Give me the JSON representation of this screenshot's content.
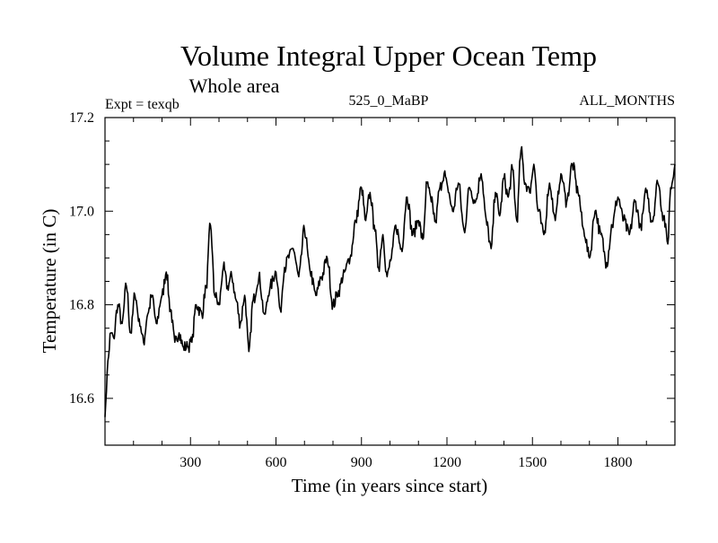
{
  "chart_data": {
    "type": "line",
    "title": "Volume Integral Upper Ocean Temp",
    "subtitle": "Whole area",
    "annotations": {
      "left": "Expt = texqb",
      "center": "525_0_MaBP",
      "right": "ALL_MONTHS"
    },
    "xlabel": "Time (in years since start)",
    "ylabel": "Temperature (in C)",
    "xlim": [
      0,
      2000
    ],
    "ylim": [
      16.5,
      17.2
    ],
    "x_ticks": [
      300,
      600,
      900,
      1200,
      1500,
      1800
    ],
    "x_tick_labels": [
      "300",
      "600",
      "900",
      "1200",
      "1500",
      "1800"
    ],
    "y_ticks": [
      16.6,
      16.8,
      17.0,
      17.2
    ],
    "y_tick_labels": [
      "16.6",
      "16.8",
      "17.0",
      "17.2"
    ],
    "x_minor_step": 100,
    "y_minor_step": 0.05,
    "grid": false,
    "line_color": "#000000",
    "series": [
      {
        "x": [
          0,
          10,
          20,
          30,
          45,
          60,
          75,
          90,
          105,
          120,
          135,
          150,
          165,
          180,
          200,
          215,
          230,
          245,
          260,
          275,
          290,
          305,
          320,
          340,
          355,
          370,
          385,
          400,
          415,
          430,
          445,
          460,
          475,
          490,
          505,
          520,
          540,
          560,
          580,
          600,
          615,
          630,
          645,
          660,
          680,
          700,
          720,
          740,
          760,
          780,
          800,
          820,
          840,
          860,
          880,
          900,
          915,
          930,
          945,
          960,
          975,
          990,
          1005,
          1020,
          1040,
          1060,
          1080,
          1100,
          1115,
          1130,
          1145,
          1160,
          1175,
          1190,
          1205,
          1220,
          1240,
          1260,
          1280,
          1300,
          1320,
          1340,
          1355,
          1370,
          1385,
          1400,
          1415,
          1430,
          1445,
          1460,
          1475,
          1490,
          1505,
          1520,
          1540,
          1560,
          1580,
          1600,
          1620,
          1640,
          1660,
          1680,
          1700,
          1720,
          1740,
          1760,
          1780,
          1800,
          1820,
          1840,
          1860,
          1880,
          1900,
          1920,
          1940,
          1960,
          1975,
          1985,
          2000
        ],
        "y": [
          16.56,
          16.68,
          16.74,
          16.73,
          16.8,
          16.76,
          16.84,
          16.74,
          16.82,
          16.77,
          16.72,
          16.78,
          16.82,
          16.76,
          16.82,
          16.87,
          16.79,
          16.72,
          16.74,
          16.71,
          16.71,
          16.72,
          16.8,
          16.78,
          16.84,
          16.97,
          16.82,
          16.8,
          16.88,
          16.84,
          16.86,
          16.81,
          16.76,
          16.82,
          16.7,
          16.81,
          16.86,
          16.78,
          16.84,
          16.87,
          16.79,
          16.88,
          16.9,
          16.92,
          16.86,
          16.96,
          16.87,
          16.82,
          16.86,
          16.9,
          16.8,
          16.83,
          16.87,
          16.9,
          16.98,
          17.05,
          16.98,
          17.04,
          16.97,
          16.88,
          16.95,
          16.86,
          16.9,
          16.97,
          16.92,
          17.03,
          16.95,
          16.98,
          16.94,
          17.06,
          17.02,
          16.98,
          17.05,
          17.08,
          17.04,
          17.0,
          17.06,
          16.96,
          17.05,
          17.02,
          17.08,
          16.97,
          16.92,
          17.04,
          16.99,
          17.07,
          17.03,
          17.09,
          16.98,
          17.13,
          17.06,
          17.04,
          17.1,
          17.0,
          16.95,
          17.06,
          16.98,
          17.08,
          17.02,
          17.1,
          17.04,
          16.96,
          16.9,
          17.0,
          16.95,
          16.89,
          16.97,
          17.03,
          16.98,
          16.95,
          17.02,
          16.97,
          17.04,
          16.98,
          17.06,
          16.99,
          16.93,
          17.05,
          17.1
        ]
      }
    ]
  }
}
